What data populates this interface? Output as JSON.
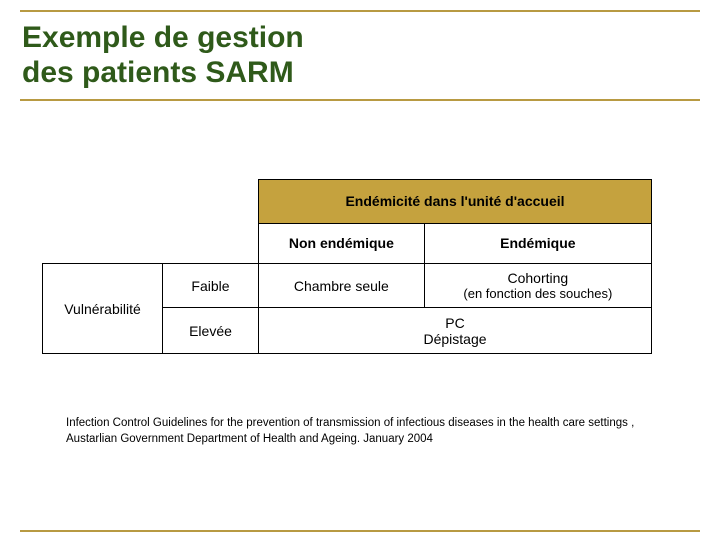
{
  "title_line1": "Exemple de gestion",
  "title_line2": "des patients SARM",
  "table": {
    "header_band": "Endémicité dans l'unité d'accueil",
    "col1": "Non endémique",
    "col2": "Endémique",
    "row_label": "Vulnérabilité",
    "row1_label": "Faible",
    "row2_label": "Elevée",
    "cell_r1c1": "Chambre seule",
    "cell_r1c2_main": "Cohorting",
    "cell_r1c2_note": "(en fonction des souches)",
    "cell_r2_merged_l1": "PC",
    "cell_r2_merged_l2": "Dépistage"
  },
  "citation_l1": "Infection Control Guidelines for the prevention of transmission of infectious diseases in the health care settings ,",
  "citation_l2": "Austarlian Government Department  of Health and Ageing. January 2004",
  "colors": {
    "accent_rule": "#b89a42",
    "title_text": "#2f5a1a",
    "header_band_bg": "#c5a23e"
  }
}
